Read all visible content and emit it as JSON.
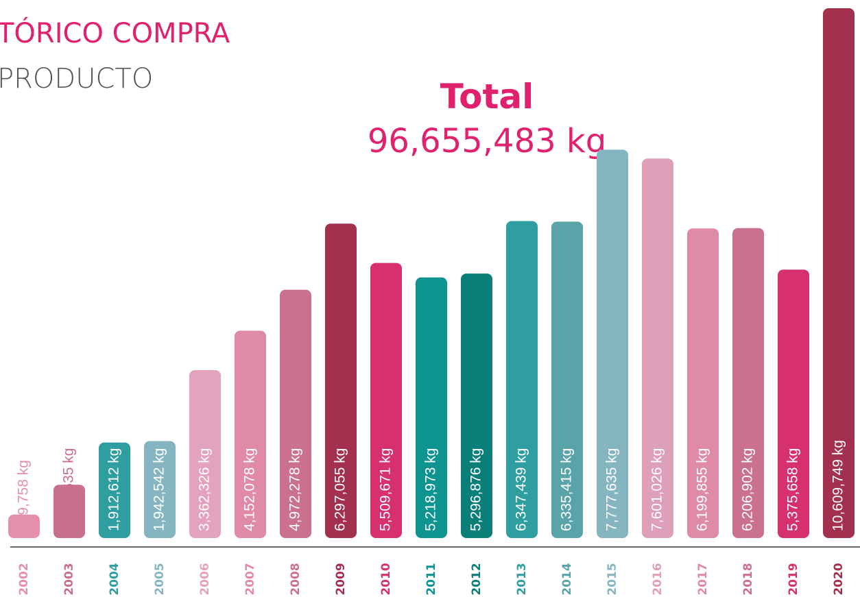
{
  "chart_data": {
    "type": "bar",
    "title": "TÓRICO COMPRA",
    "subtitle": "PRODUCTO",
    "annotations": [
      "Total",
      "96,655,483 kg"
    ],
    "categories": [
      "2002",
      "2003",
      "2004",
      "2005",
      "2006",
      "2007",
      "2008",
      "2009",
      "2010",
      "2011",
      "2012",
      "2013",
      "2014",
      "2015",
      "2016",
      "2017",
      "2018",
      "2019",
      "2020"
    ],
    "values": [
      469758,
      1067635,
      1912612,
      1942542,
      3362326,
      4152078,
      4972278,
      6297055,
      5509671,
      5218973,
      5296876,
      6347439,
      6335415,
      7777635,
      7601026,
      6199855,
      6206902,
      5375658,
      10609749
    ],
    "value_labels": [
      "469,758 kg",
      "1,067,635 kg",
      "1,912,612 kg",
      "1,942,542 kg",
      "3,362,326 kg",
      "4,152,078 kg",
      "4,972,278 kg",
      "6,297,055 kg",
      "5,509,671 kg",
      "5,218,973 kg",
      "5,296,876 kg",
      "6,347,439 kg",
      "6,335,415 kg",
      "7,777,635 kg",
      "7,601,026 kg",
      "6,199,855 kg",
      "6,206,902 kg",
      "5,375,658 kg",
      "10,609,749 kg"
    ],
    "colors": [
      "#e58fae",
      "#c96f8c",
      "#2e9ea0",
      "#85b5c0",
      "#e4a3bc",
      "#e08aaa",
      "#c9718d",
      "#a3304f",
      "#d6306e",
      "#0d9490",
      "#0a7f7a",
      "#2e9ea0",
      "#5aa3a8",
      "#85b5c0",
      "#dea0b8",
      "#e08aaa",
      "#c9718d",
      "#d6306e",
      "#a3304f"
    ]
  }
}
